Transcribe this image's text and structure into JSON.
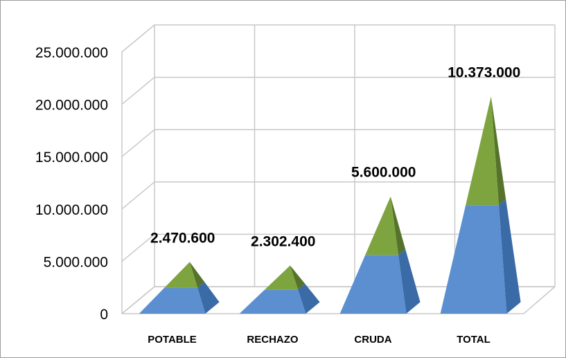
{
  "chart_data": {
    "type": "bar",
    "shape": "pyramid-3d",
    "title": "",
    "xlabel": "",
    "ylabel": "",
    "categories": [
      "POTABLE",
      "RECHAZO",
      "CRUDA",
      "TOTAL"
    ],
    "series": [
      {
        "values": [
          2470600,
          2302400,
          5600000,
          10373000
        ]
      },
      {
        "values": [
          2470600,
          2302400,
          5600000,
          10373000
        ]
      }
    ],
    "data_labels": [
      "2.470.600",
      "2.302.400",
      "5.600.000",
      "10.373.000"
    ],
    "stacked": true,
    "ylim": [
      0,
      25000000
    ],
    "yticks": [
      0,
      5000000,
      10000000,
      15000000,
      20000000,
      25000000
    ],
    "ytick_labels": [
      "0",
      "5.000.000",
      "10.000.000",
      "15.000.000",
      "20.000.000",
      "25.000.000"
    ],
    "grid": true,
    "legend": "none",
    "colors": {
      "lower_front": "#5b8fd0",
      "lower_side": "#3a6ba7",
      "upper_front": "#7ea43f",
      "upper_side": "#56732b",
      "grid": "#c8c8c8"
    }
  }
}
